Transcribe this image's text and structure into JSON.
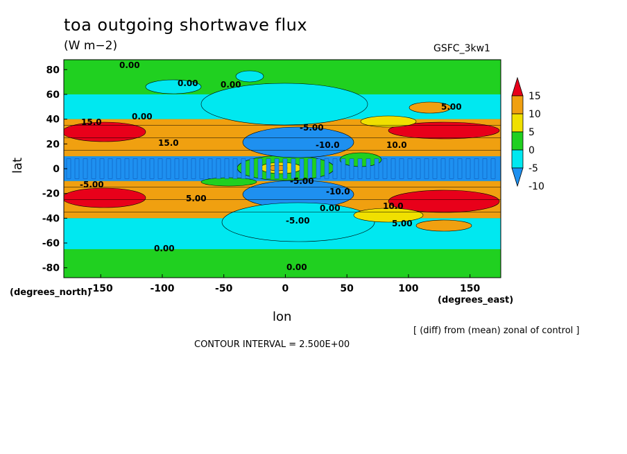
{
  "chart_data": {
    "type": "heatmap",
    "title": "toa outgoing shortwave flux",
    "units": "(W m−2)",
    "model": "GSFC_3kw1",
    "xlabel": "lon",
    "ylabel": "lat",
    "x_unit": "(degrees_east)",
    "y_unit": "(degrees_north)",
    "xlim": [
      -180,
      175
    ],
    "ylim": [
      -88,
      88
    ],
    "x_ticks": [
      -150,
      -100,
      -50,
      0,
      50,
      100,
      150
    ],
    "y_ticks": [
      80,
      60,
      40,
      20,
      0,
      -20,
      -40,
      -60,
      -80
    ],
    "tick_labels_x": [
      "-150",
      "-100",
      "-50",
      "0",
      "50",
      "100",
      "150"
    ],
    "tick_labels_y": [
      "80",
      "60",
      "40",
      "20",
      "0",
      "-20",
      "-40",
      "-60",
      "-80"
    ],
    "colorbar": {
      "levels": [
        15,
        10,
        5,
        0,
        -5,
        -10
      ],
      "labels": [
        "15",
        "10",
        "5",
        "0",
        "-5",
        "-10"
      ],
      "colors": [
        "#e8001a",
        "#f0a010",
        "#f0e000",
        "#20d020",
        "#00e8f0",
        "#1e90f0"
      ]
    },
    "bands": [
      {
        "lat_from": 88,
        "lat_to": 60,
        "value": 0
      },
      {
        "lat_from": 60,
        "lat_to": 40,
        "value": -5
      },
      {
        "lat_from": 40,
        "lat_to": 10,
        "value": 10
      },
      {
        "lat_from": 10,
        "lat_to": -10,
        "value": -10
      },
      {
        "lat_from": -10,
        "lat_to": -40,
        "value": 10
      },
      {
        "lat_from": -40,
        "lat_to": -65,
        "value": -5
      },
      {
        "lat_from": -65,
        "lat_to": -88,
        "value": 0
      }
    ],
    "contour_labels": [
      "0.00",
      "0.00",
      "0.00",
      "0.00",
      "5.00",
      "-5.00",
      "-10.0",
      "15.0",
      "-5.00",
      "10.0",
      "-10.0",
      "15.0",
      "5.00",
      "-5.00",
      "0.00",
      "10.0",
      "-5.00",
      "5.00",
      "0.00",
      "0.00"
    ],
    "annotation": "[ (diff) from (mean) zonal of control ]",
    "contour_interval": "CONTOUR INTERVAL = 2.500E+00"
  }
}
